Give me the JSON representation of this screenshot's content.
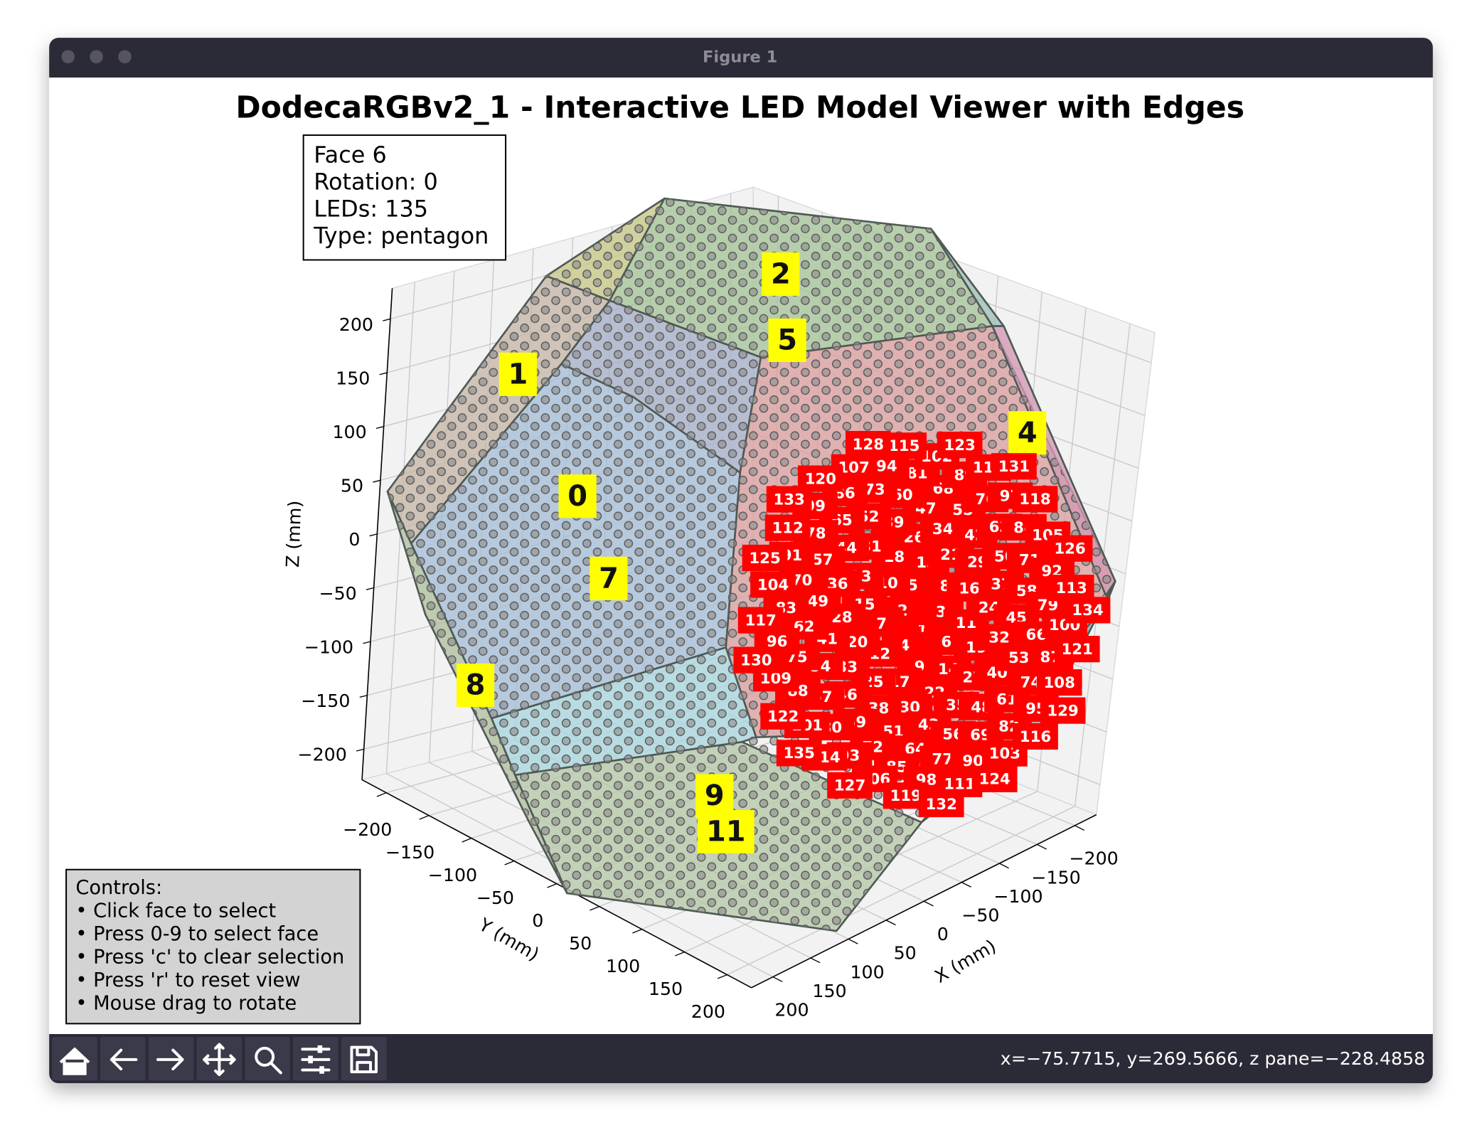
{
  "window": {
    "title": "Figure 1"
  },
  "chart_data": {
    "type": "scatter3d",
    "title": "DodecaRGBv2_1 - Interactive LED Model Viewer with Edges",
    "xlabel": "X (mm)",
    "ylabel": "Y (mm)",
    "zlabel": "Z (mm)",
    "xlim": [
      -228.5,
      228.5
    ],
    "ylim": [
      -228.5,
      228.5
    ],
    "zlim": [
      -228.5,
      228.5
    ],
    "xticks": [
      {
        "value": -200,
        "label": "−200"
      },
      {
        "value": -150,
        "label": "−150"
      },
      {
        "value": -100,
        "label": "−100"
      },
      {
        "value": -50,
        "label": "−50"
      },
      0,
      50,
      100,
      150,
      200
    ],
    "yticks": [
      {
        "value": -200,
        "label": "−200"
      },
      {
        "value": -150,
        "label": "−150"
      },
      {
        "value": -100,
        "label": "−100"
      },
      {
        "value": -50,
        "label": "−50"
      },
      0,
      50,
      100,
      150,
      200
    ],
    "zticks": [
      {
        "value": -200,
        "label": "−200"
      },
      {
        "value": -150,
        "label": "−150"
      },
      {
        "value": -100,
        "label": "−100"
      },
      {
        "value": -50,
        "label": "−50"
      },
      0,
      50,
      100,
      150,
      200
    ],
    "grid": true,
    "face_labels": [
      2,
      5,
      1,
      0,
      7,
      8,
      4,
      9,
      11
    ],
    "selected_color": "#ff0000",
    "led_labels": [
      1,
      2,
      3,
      4,
      5,
      6,
      7,
      8,
      9,
      10,
      11,
      12,
      13,
      14,
      15,
      16,
      17,
      18,
      19,
      20,
      21,
      22,
      23,
      24,
      25,
      26,
      27,
      28,
      29,
      30,
      31,
      32,
      33,
      34,
      35,
      36,
      37,
      38,
      39,
      40,
      41,
      42,
      43,
      44,
      45,
      46,
      47,
      48,
      49,
      50,
      51,
      52,
      53,
      54,
      55,
      56,
      57,
      58,
      59,
      60,
      61,
      62,
      63,
      64,
      65,
      66,
      67,
      68,
      69,
      70,
      71,
      72,
      73,
      74,
      75,
      76,
      77,
      78,
      79,
      80,
      81,
      82,
      83,
      84,
      85,
      86,
      87,
      88,
      89,
      90,
      91,
      92,
      93,
      94,
      95,
      96,
      97,
      98,
      99,
      100,
      101,
      102,
      103,
      104,
      105,
      106,
      107,
      108,
      109,
      110,
      111,
      112,
      113,
      114,
      115,
      116,
      117,
      118,
      119,
      120,
      121,
      122,
      123,
      124,
      125,
      126,
      127,
      128,
      129,
      130,
      131,
      132,
      133,
      134,
      135
    ]
  },
  "info_box": [
    "Face 6",
    "Rotation: 0",
    "LEDs: 135",
    "Type: pentagon"
  ],
  "controls": [
    "Controls:",
    "• Click face to select",
    "• Press 0-9 to select face",
    "• Press 'c' to clear selection",
    "• Press 'r' to reset view",
    "• Mouse drag to rotate"
  ],
  "status": "x=−75.7715, y=269.5666, z pane=−228.4858"
}
